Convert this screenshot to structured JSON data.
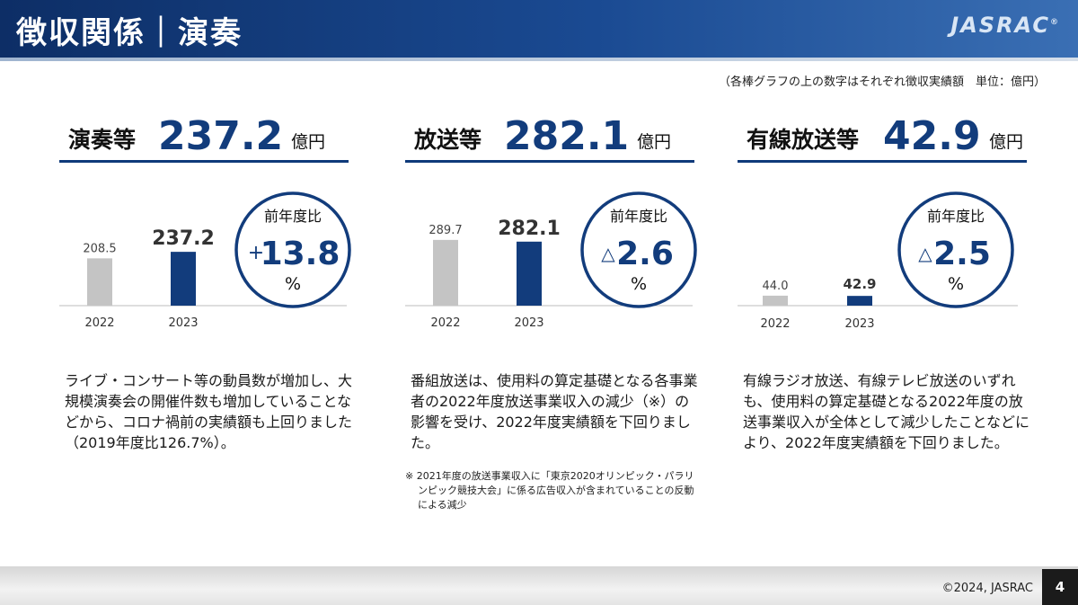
{
  "header": {
    "title": "徴収関係｜演奏",
    "logo": "JASRAC",
    "logo_mark": "®"
  },
  "unit_note": "（各棒グラフの上の数字はそれぞれ徴収実績額　単位：億円）",
  "panels": [
    {
      "label": "演奏等",
      "value": "237.2",
      "unit": "億円",
      "ratio_label": "前年度比",
      "ratio_sign": "+",
      "ratio_value": "13.8",
      "ratio_unit": "%",
      "description": "ライブ・コンサート等の動員数が増加し、大規模演奏会の開催件数も増加していることなどから、コロナ禍前の実績額も上回りました（2019年度比126.7%）。"
    },
    {
      "label": "放送等",
      "value": "282.1",
      "unit": "億円",
      "ratio_label": "前年度比",
      "ratio_sign": "△",
      "ratio_value": "2.6",
      "ratio_unit": "%",
      "description": "番組放送は、使用料の算定基礎となる各事業者の2022年度放送事業収入の減少（※）の影響を受け、2022年度実績額を下回りました。",
      "footnote_1": "※ 2021年度の放送事業収入に「東京2020オリンピック・パラリ",
      "footnote_2": "ンピック競技大会」に係る広告収入が含まれていることの反動",
      "footnote_3": "による減少"
    },
    {
      "label": "有線放送等",
      "value": "42.9",
      "unit": "億円",
      "ratio_label": "前年度比",
      "ratio_sign": "△",
      "ratio_value": "2.5",
      "ratio_unit": "%",
      "description": "有線ラジオ放送、有線テレビ放送のいずれも、使用料の算定基礎となる2022年度の放送事業収入が全体として減少したことなどにより、2022年度実績額を下回りました。"
    }
  ],
  "colors": {
    "prev_bar": "#c4c4c4",
    "curr_bar": "#123c7c",
    "accent": "#123c7c",
    "header": "#0d2e66"
  },
  "chart_data": [
    {
      "type": "bar",
      "categories": [
        "2022",
        "2023"
      ],
      "values": [
        208.5,
        237.2
      ],
      "value_labels": [
        "208.5",
        "237.2"
      ],
      "ylim": [
        0,
        300
      ]
    },
    {
      "type": "bar",
      "categories": [
        "2022",
        "2023"
      ],
      "values": [
        289.7,
        282.1
      ],
      "value_labels": [
        "289.7",
        "282.1"
      ],
      "ylim": [
        0,
        300
      ]
    },
    {
      "type": "bar",
      "categories": [
        "2022",
        "2023"
      ],
      "values": [
        44.0,
        42.9
      ],
      "value_labels": [
        "44.0",
        "42.9"
      ],
      "ylim": [
        0,
        300
      ]
    }
  ],
  "footer": {
    "copyright": "©2024, JASRAC",
    "page_number": "4"
  }
}
